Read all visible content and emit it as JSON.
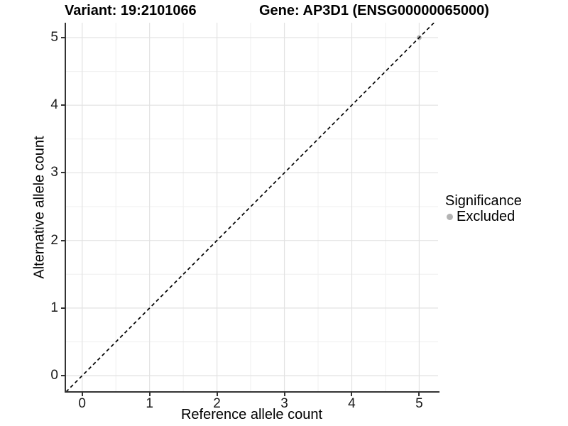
{
  "header": {
    "variant_title": "Variant: 19:2101066",
    "gene_title": "Gene: AP3D1 (ENSG00000065000)"
  },
  "legend": {
    "title": "Significance",
    "items": [
      {
        "label": "Excluded",
        "color": "#b3b3b3"
      }
    ]
  },
  "colors": {
    "grid_major": "#e2e2e2",
    "grid_minor": "#efefef",
    "axis": "#333333",
    "tick_label": "#1a1a1a",
    "dashed_line": "#000000",
    "excluded_point": "#b3b3b3"
  },
  "chart_data": {
    "type": "scatter",
    "title_left": "Variant: 19:2101066",
    "title_right": "Gene: AP3D1 (ENSG00000065000)",
    "xlabel": "Reference allele count",
    "ylabel": "Alternative allele count",
    "xlim": [
      -0.25,
      5.28
    ],
    "ylim": [
      -0.24,
      5.22
    ],
    "x_major_ticks": [
      0,
      1,
      2,
      3,
      4,
      5
    ],
    "y_major_ticks": [
      0,
      1,
      2,
      3,
      4,
      5
    ],
    "x_minor_gridlines": [
      0.5,
      1.5,
      2.5,
      3.5,
      4.5
    ],
    "y_minor_gridlines": [
      0.5,
      1.5,
      2.5,
      3.5,
      4.5
    ],
    "grid": "major+minor",
    "legend_position": "right",
    "legend_title": "Significance",
    "series": [
      {
        "name": "Excluded",
        "marker": "circle",
        "color": "#b3b3b3",
        "points": [
          [
            5,
            5
          ]
        ]
      }
    ],
    "reference_line": {
      "type": "identity y=x",
      "linestyle": "dashed",
      "color": "#000000"
    }
  }
}
